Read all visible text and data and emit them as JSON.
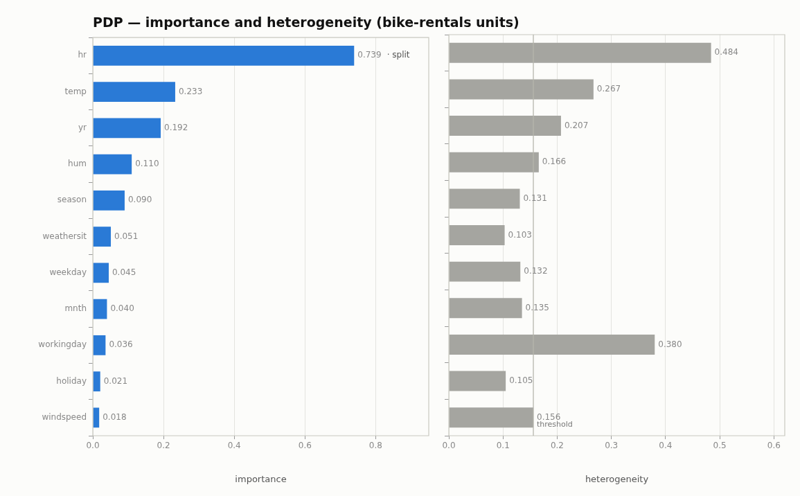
{
  "chart_data": [
    {
      "type": "bar",
      "orientation": "horizontal",
      "title": "PDP — importance and heterogeneity (bike-rentals units)",
      "categories": [
        "hr",
        "temp",
        "yr",
        "hum",
        "season",
        "weathersit",
        "weekday",
        "mnth",
        "workingday",
        "holiday",
        "windspeed"
      ],
      "values": [
        0.739,
        0.233,
        0.192,
        0.11,
        0.09,
        0.051,
        0.045,
        0.04,
        0.036,
        0.021,
        0.018
      ],
      "value_labels": [
        "0.739",
        "0.233",
        "0.192",
        "0.110",
        "0.090",
        "0.051",
        "0.045",
        "0.040",
        "0.036",
        "0.021",
        "0.018"
      ],
      "color": "#2a7ad6",
      "xlim": [
        0,
        0.95
      ],
      "xticks": [
        {
          "value": 0,
          "label": "0.0"
        },
        0.2,
        0.4,
        0.6,
        0.8
      ],
      "xlabel": "importance",
      "grid": "x",
      "legend": false,
      "annotations": [
        "· split"
      ]
    },
    {
      "type": "bar",
      "orientation": "horizontal",
      "categories": [
        null,
        null,
        null,
        null,
        null,
        null,
        null,
        null,
        null,
        null,
        null
      ],
      "values": [
        0.484,
        0.267,
        0.207,
        0.166,
        0.131,
        0.103,
        0.132,
        0.135,
        0.38,
        0.105,
        0.156
      ],
      "value_labels": [
        "0.484",
        "0.267",
        "0.207",
        "0.166",
        "0.131",
        "0.103",
        "0.132",
        "0.135",
        "0.380",
        "0.105",
        "0.156"
      ],
      "color": "#a5a5a0",
      "xlim": [
        0,
        0.62
      ],
      "xticks": [
        {
          "value": 0,
          "label": "0.0"
        },
        0.1,
        0.2,
        0.3,
        0.4,
        0.5,
        0.6
      ],
      "xlabel": "heterogeneity",
      "grid": "x",
      "legend": false,
      "tick_labels": "x",
      "ref_lines": [
        {
          "axis": "x",
          "value": 0.156,
          "label": "threshold",
          "color": "#b5b5ad"
        }
      ]
    }
  ]
}
